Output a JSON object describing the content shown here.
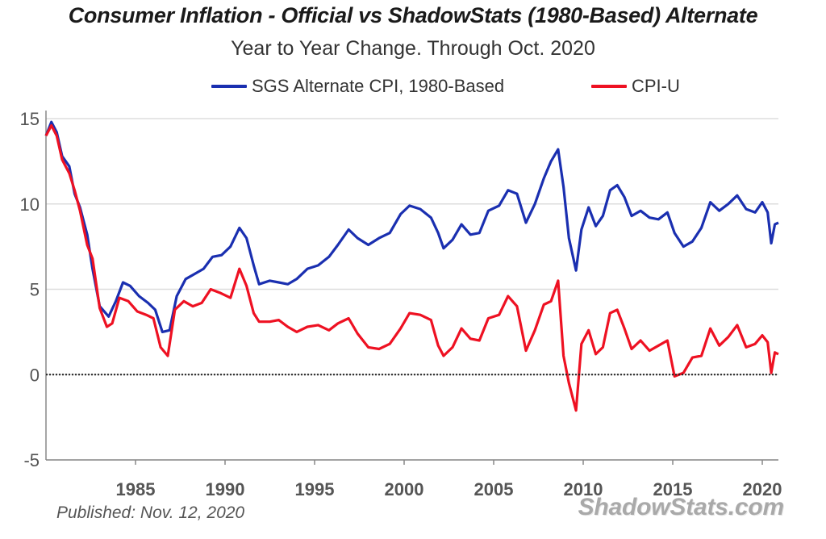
{
  "chart_data": {
    "type": "line",
    "title": "Consumer Inflation - Official vs ShadowStats (1980-Based) Alternate",
    "subtitle": "Year to Year Change. Through Oct. 2020",
    "xlabel": "",
    "ylabel": "",
    "xlim": [
      1980,
      2020.9
    ],
    "ylim": [
      -5,
      15
    ],
    "yticks": [
      15,
      10,
      5,
      0,
      -5
    ],
    "xticks": [
      1985,
      1990,
      1995,
      2000,
      2005,
      2010,
      2015,
      2020
    ],
    "grid": true,
    "legend_placement": "top-center",
    "zero_line": true,
    "series": [
      {
        "name": "SGS Alternate CPI, 1980-Based",
        "color": "#1a2fb0",
        "points": [
          [
            1980.0,
            14.0
          ],
          [
            1980.3,
            14.8
          ],
          [
            1980.6,
            14.2
          ],
          [
            1980.9,
            12.8
          ],
          [
            1981.3,
            12.2
          ],
          [
            1981.6,
            10.6
          ],
          [
            1981.9,
            9.8
          ],
          [
            1982.3,
            8.2
          ],
          [
            1982.6,
            6.2
          ],
          [
            1983.0,
            4.0
          ],
          [
            1983.5,
            3.4
          ],
          [
            1983.9,
            4.3
          ],
          [
            1984.3,
            5.4
          ],
          [
            1984.7,
            5.2
          ],
          [
            1985.2,
            4.6
          ],
          [
            1985.7,
            4.2
          ],
          [
            1986.1,
            3.8
          ],
          [
            1986.5,
            2.5
          ],
          [
            1986.9,
            2.6
          ],
          [
            1987.3,
            4.6
          ],
          [
            1987.8,
            5.6
          ],
          [
            1988.3,
            5.9
          ],
          [
            1988.8,
            6.2
          ],
          [
            1989.3,
            6.9
          ],
          [
            1989.8,
            7.0
          ],
          [
            1990.3,
            7.5
          ],
          [
            1990.8,
            8.6
          ],
          [
            1991.2,
            8.0
          ],
          [
            1991.6,
            6.4
          ],
          [
            1991.9,
            5.3
          ],
          [
            1992.5,
            5.5
          ],
          [
            1993.0,
            5.4
          ],
          [
            1993.5,
            5.3
          ],
          [
            1994.0,
            5.6
          ],
          [
            1994.6,
            6.2
          ],
          [
            1995.2,
            6.4
          ],
          [
            1995.8,
            6.9
          ],
          [
            1996.3,
            7.6
          ],
          [
            1996.9,
            8.5
          ],
          [
            1997.4,
            8.0
          ],
          [
            1998.0,
            7.6
          ],
          [
            1998.6,
            8.0
          ],
          [
            1999.2,
            8.3
          ],
          [
            1999.8,
            9.4
          ],
          [
            2000.3,
            9.9
          ],
          [
            2000.9,
            9.7
          ],
          [
            2001.5,
            9.2
          ],
          [
            2001.9,
            8.3
          ],
          [
            2002.2,
            7.4
          ],
          [
            2002.7,
            7.9
          ],
          [
            2003.2,
            8.8
          ],
          [
            2003.7,
            8.2
          ],
          [
            2004.2,
            8.3
          ],
          [
            2004.7,
            9.6
          ],
          [
            2005.3,
            9.9
          ],
          [
            2005.8,
            10.8
          ],
          [
            2006.3,
            10.6
          ],
          [
            2006.8,
            8.9
          ],
          [
            2007.3,
            10.0
          ],
          [
            2007.8,
            11.5
          ],
          [
            2008.2,
            12.5
          ],
          [
            2008.6,
            13.2
          ],
          [
            2008.9,
            11.0
          ],
          [
            2009.2,
            8.0
          ],
          [
            2009.6,
            6.1
          ],
          [
            2009.9,
            8.5
          ],
          [
            2010.3,
            9.8
          ],
          [
            2010.7,
            8.7
          ],
          [
            2011.1,
            9.3
          ],
          [
            2011.5,
            10.8
          ],
          [
            2011.9,
            11.1
          ],
          [
            2012.3,
            10.4
          ],
          [
            2012.7,
            9.3
          ],
          [
            2013.2,
            9.6
          ],
          [
            2013.7,
            9.2
          ],
          [
            2014.2,
            9.1
          ],
          [
            2014.7,
            9.5
          ],
          [
            2015.1,
            8.3
          ],
          [
            2015.6,
            7.5
          ],
          [
            2016.1,
            7.8
          ],
          [
            2016.6,
            8.6
          ],
          [
            2017.1,
            10.1
          ],
          [
            2017.6,
            9.6
          ],
          [
            2018.1,
            10.0
          ],
          [
            2018.6,
            10.5
          ],
          [
            2019.1,
            9.7
          ],
          [
            2019.6,
            9.5
          ],
          [
            2020.0,
            10.1
          ],
          [
            2020.3,
            9.5
          ],
          [
            2020.5,
            7.7
          ],
          [
            2020.7,
            8.8
          ],
          [
            2020.9,
            8.9
          ]
        ]
      },
      {
        "name": "CPI-U",
        "color": "#ee1122",
        "points": [
          [
            1980.0,
            14.0
          ],
          [
            1980.3,
            14.6
          ],
          [
            1980.6,
            14.0
          ],
          [
            1980.9,
            12.6
          ],
          [
            1981.3,
            11.8
          ],
          [
            1981.6,
            10.8
          ],
          [
            1981.9,
            9.6
          ],
          [
            1982.3,
            7.6
          ],
          [
            1982.6,
            6.8
          ],
          [
            1983.0,
            3.9
          ],
          [
            1983.4,
            2.8
          ],
          [
            1983.7,
            3.0
          ],
          [
            1984.1,
            4.5
          ],
          [
            1984.6,
            4.3
          ],
          [
            1985.1,
            3.7
          ],
          [
            1985.6,
            3.5
          ],
          [
            1986.0,
            3.3
          ],
          [
            1986.4,
            1.6
          ],
          [
            1986.8,
            1.1
          ],
          [
            1987.2,
            3.8
          ],
          [
            1987.7,
            4.3
          ],
          [
            1988.2,
            4.0
          ],
          [
            1988.7,
            4.2
          ],
          [
            1989.2,
            5.0
          ],
          [
            1989.7,
            4.8
          ],
          [
            1990.3,
            4.5
          ],
          [
            1990.8,
            6.2
          ],
          [
            1991.2,
            5.2
          ],
          [
            1991.6,
            3.6
          ],
          [
            1991.9,
            3.1
          ],
          [
            1992.5,
            3.1
          ],
          [
            1993.0,
            3.2
          ],
          [
            1993.5,
            2.8
          ],
          [
            1994.0,
            2.5
          ],
          [
            1994.6,
            2.8
          ],
          [
            1995.2,
            2.9
          ],
          [
            1995.8,
            2.6
          ],
          [
            1996.3,
            3.0
          ],
          [
            1996.9,
            3.3
          ],
          [
            1997.4,
            2.4
          ],
          [
            1998.0,
            1.6
          ],
          [
            1998.6,
            1.5
          ],
          [
            1999.2,
            1.8
          ],
          [
            1999.8,
            2.7
          ],
          [
            2000.3,
            3.6
          ],
          [
            2000.9,
            3.5
          ],
          [
            2001.5,
            3.2
          ],
          [
            2001.9,
            1.7
          ],
          [
            2002.2,
            1.1
          ],
          [
            2002.7,
            1.6
          ],
          [
            2003.2,
            2.7
          ],
          [
            2003.7,
            2.1
          ],
          [
            2004.2,
            2.0
          ],
          [
            2004.7,
            3.3
          ],
          [
            2005.3,
            3.5
          ],
          [
            2005.8,
            4.6
          ],
          [
            2006.3,
            4.0
          ],
          [
            2006.8,
            1.4
          ],
          [
            2007.3,
            2.6
          ],
          [
            2007.8,
            4.1
          ],
          [
            2008.2,
            4.3
          ],
          [
            2008.6,
            5.5
          ],
          [
            2008.9,
            1.1
          ],
          [
            2009.2,
            -0.5
          ],
          [
            2009.6,
            -2.1
          ],
          [
            2009.9,
            1.8
          ],
          [
            2010.3,
            2.6
          ],
          [
            2010.7,
            1.2
          ],
          [
            2011.1,
            1.6
          ],
          [
            2011.5,
            3.6
          ],
          [
            2011.9,
            3.8
          ],
          [
            2012.3,
            2.7
          ],
          [
            2012.7,
            1.5
          ],
          [
            2013.2,
            2.0
          ],
          [
            2013.7,
            1.4
          ],
          [
            2014.2,
            1.7
          ],
          [
            2014.7,
            2.0
          ],
          [
            2015.1,
            -0.1
          ],
          [
            2015.6,
            0.1
          ],
          [
            2016.1,
            1.0
          ],
          [
            2016.6,
            1.1
          ],
          [
            2017.1,
            2.7
          ],
          [
            2017.6,
            1.7
          ],
          [
            2018.1,
            2.2
          ],
          [
            2018.6,
            2.9
          ],
          [
            2019.1,
            1.6
          ],
          [
            2019.6,
            1.8
          ],
          [
            2020.0,
            2.3
          ],
          [
            2020.3,
            1.9
          ],
          [
            2020.5,
            0.1
          ],
          [
            2020.7,
            1.3
          ],
          [
            2020.9,
            1.2
          ]
        ]
      }
    ]
  },
  "footer": {
    "published": "Published: Nov. 12, 2020",
    "brand": "ShadowStats.com"
  }
}
